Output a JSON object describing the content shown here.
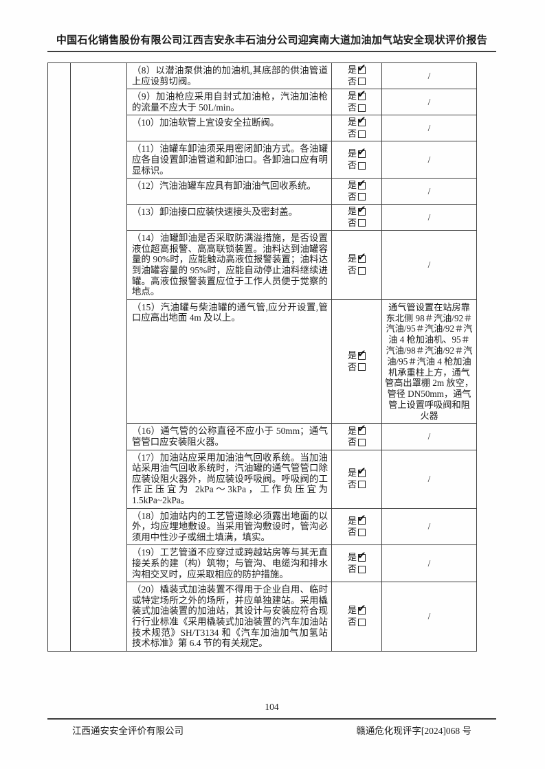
{
  "header": {
    "title": "中国石化销售股份有限公司江西吉安永丰石油分公司迎宾南大道加油加气站安全现状评价报告"
  },
  "table": {
    "yes_label": "是",
    "no_label": "否",
    "rows": [
      {
        "text": "（8）以潜油泵供油的加油机,其底部的供油管道上应设剪切阀。",
        "yes_checked": true,
        "no_checked": false,
        "remark": "/"
      },
      {
        "text": "（9）加油枪应采用自封式加油枪，汽油加油枪的流量不应大于 50L/min。",
        "yes_checked": true,
        "no_checked": false,
        "remark": "/"
      },
      {
        "text": "（10）加油软管上宜设安全拉断阀。",
        "yes_checked": true,
        "no_checked": false,
        "remark": "/"
      },
      {
        "text": "（11）油罐车卸油须采用密闭卸油方式。各油罐应各自设置卸油管道和卸油口。各卸油口应有明显标识。",
        "yes_checked": true,
        "no_checked": false,
        "remark": "/"
      },
      {
        "text": "（12）汽油油罐车应具有卸油油气回收系统。",
        "yes_checked": true,
        "no_checked": false,
        "remark": "/"
      },
      {
        "text": "（13）卸油接口应装快速接头及密封盖。",
        "yes_checked": true,
        "no_checked": false,
        "remark": "/"
      },
      {
        "text": "（14）油罐卸油是否采取防满溢措施，是否设置液位超高报警、高高联锁装置。油料达到油罐容量的 90%时，应能触动高液位报警装置；油料达到油罐容量的 95%时，应能自动停止油料继续进罐。高液位报警装置应位于工作人员便于觉察的地点。",
        "yes_checked": true,
        "no_checked": false,
        "remark": "/"
      },
      {
        "text": "（15）汽油罐与柴油罐的通气管,应分开设置,管口应高出地面 4m 及以上。",
        "yes_checked": true,
        "no_checked": false,
        "remark": "通气管设置在站房靠东北侧 98＃汽油/92＃汽油/95＃汽油/92＃汽油 4 枪加油机、95＃汽油/98＃汽油/92＃汽油/95＃汽油 4 枪加油机承重柱上方，通气管高出罩棚 2m 放空，管径 DN50mm，通气管上设置呼吸阀和阻火器"
      },
      {
        "text": "（16）通气管的公称直径不应小于 50mm；通气管管口应安装阻火器。",
        "yes_checked": true,
        "no_checked": false,
        "remark": "/"
      },
      {
        "text": "（17）加油站应采用加油油气回收系统。当加油站采用油气回收系统时，汽油罐的通气管管口除应装设阻火器外，尚应装设呼吸阀。呼吸阀的工作正压宜为 2kPa～3kPa，工作负压宜为 1.5kPa~2kPa。",
        "yes_checked": true,
        "no_checked": false,
        "remark": "/"
      },
      {
        "text": "（18）加油站内的工艺管道除必须露出地面的以外，均应埋地敷设。当采用管沟敷设时，管沟必须用中性沙子或细土填满，填实。",
        "yes_checked": true,
        "no_checked": false,
        "remark": "/"
      },
      {
        "text": "（19）工艺管道不应穿过或跨越站房等与其无直接关系的建（构）筑物；与管沟、电缆沟和排水沟相交叉时，应采取相应的防护措施。",
        "yes_checked": true,
        "no_checked": false,
        "remark": "/"
      },
      {
        "text": "（20）橇装式加油装置不得用于企业自用、临时或特定场所之外的场所，并应单独建站。采用橇装式加油装置的加油站，其设计与安装应符合现行行业标准《采用橇装式加油装置的汽车加油站技术规范》SH/T3134 和《汽车加油加气加氢站技术标准》第 6.4 节的有关规定。",
        "yes_checked": true,
        "no_checked": false,
        "remark": "/"
      }
    ]
  },
  "footer": {
    "page_number": "104",
    "company": "江西通安安全评价有限公司",
    "doc_number": "赣通危化现评字[2024]068 号"
  }
}
